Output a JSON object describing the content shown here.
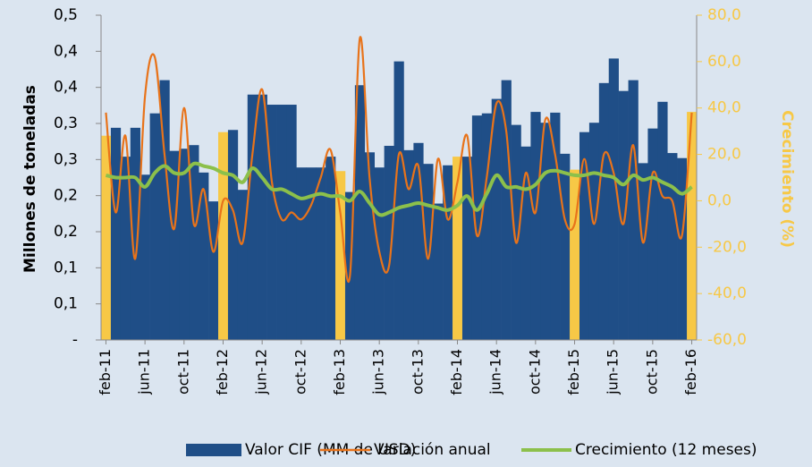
{
  "chart_data": {
    "type": "combo",
    "y_label": "Millones de toneladas",
    "y2_label": "Crecimiento (%)",
    "categories": [
      "feb-11",
      null,
      null,
      null,
      "jun-11",
      null,
      null,
      null,
      "oct-11",
      null,
      null,
      null,
      "feb-12",
      null,
      null,
      null,
      "jun-12",
      null,
      null,
      null,
      "oct-12",
      null,
      null,
      null,
      "feb-13",
      null,
      null,
      null,
      "jun-13",
      null,
      null,
      null,
      "oct-13",
      null,
      null,
      null,
      "feb-14",
      null,
      null,
      null,
      "jun-14",
      null,
      null,
      null,
      "oct-14",
      null,
      null,
      null,
      "feb-15",
      null,
      null,
      null,
      "jun-15",
      null,
      null,
      null,
      "oct-15",
      null,
      null,
      null,
      "feb-16"
    ],
    "series": [
      {
        "name": "Valor CIF (MM de USD)",
        "type": "bar",
        "color": "#1f4e87",
        "highlight_color": "#f7c846",
        "values": [
          0.283,
          0.294,
          0.254,
          0.294,
          0.229,
          0.314,
          0.36,
          0.262,
          0.265,
          0.27,
          0.232,
          0.192,
          0.288,
          0.291,
          0.208,
          0.34,
          0.34,
          0.326,
          0.326,
          0.326,
          0.239,
          0.239,
          0.239,
          0.254,
          0.234,
          0.205,
          0.353,
          0.26,
          0.239,
          0.269,
          0.386,
          0.263,
          0.273,
          0.244,
          0.189,
          0.242,
          0.254,
          0.254,
          0.311,
          0.314,
          0.334,
          0.36,
          0.298,
          0.268,
          0.316,
          0.301,
          0.315,
          0.258,
          0.236,
          0.288,
          0.301,
          0.356,
          0.39,
          0.345,
          0.36,
          0.245,
          0.293,
          0.33,
          0.259,
          0.252,
          0.316
        ]
      },
      {
        "name": "Variación anual",
        "type": "line",
        "axis": "y2",
        "color": "#e8731a",
        "values": [
          38,
          -5,
          28,
          -25,
          45,
          62,
          20,
          -12,
          40,
          -10,
          5,
          -22,
          0,
          -4,
          -18,
          20,
          48,
          8,
          -8,
          -5,
          -8,
          -2,
          10,
          22,
          -5,
          -32,
          70,
          10,
          -22,
          -28,
          20,
          5,
          15,
          -25,
          18,
          -8,
          8,
          28,
          -15,
          10,
          42,
          30,
          -18,
          12,
          -5,
          35,
          20,
          -8,
          -10,
          18,
          -10,
          20,
          12,
          -10,
          24,
          -18,
          12,
          2,
          0,
          -15,
          38
        ]
      },
      {
        "name": "Crecimiento (12 meses)",
        "type": "line",
        "axis": "y2",
        "color": "#8cc04b",
        "values": [
          11,
          10,
          10,
          10,
          6,
          12,
          15,
          12,
          12,
          16,
          15,
          14,
          12,
          11,
          8,
          14,
          10,
          5,
          5,
          3,
          1,
          2,
          3,
          2,
          2,
          0,
          4,
          -1,
          -6,
          -5,
          -3,
          -2,
          -1,
          -2,
          -3,
          -4,
          -2,
          2,
          -4,
          3,
          11,
          6,
          6,
          5,
          7,
          12,
          13,
          12,
          11,
          11,
          12,
          11,
          10,
          7,
          11,
          9,
          10,
          8,
          6,
          3,
          6
        ]
      }
    ],
    "highlight_every": 12,
    "ylim": [
      0,
      0.45
    ],
    "yticks": [
      {
        "value": 0,
        "label": "-"
      },
      {
        "value": 0.05,
        "label": "0,1"
      },
      {
        "value": 0.1,
        "label": "0,1"
      },
      {
        "value": 0.15,
        "label": "0,2"
      },
      {
        "value": 0.2,
        "label": "0,2"
      },
      {
        "value": 0.25,
        "label": "0,3"
      },
      {
        "value": 0.3,
        "label": "0,3"
      },
      {
        "value": 0.35,
        "label": "0,4"
      },
      {
        "value": 0.4,
        "label": "0,4"
      },
      {
        "value": 0.45,
        "label": "0,5"
      }
    ],
    "y2lim": [
      -60,
      80
    ],
    "y2ticks": [
      {
        "value": -60,
        "label": "-60,0"
      },
      {
        "value": -40,
        "label": "-40,0"
      },
      {
        "value": -20,
        "label": "-20,0"
      },
      {
        "value": 0,
        "label": "0,0"
      },
      {
        "value": 20,
        "label": "20,0"
      },
      {
        "value": 40,
        "label": "40,0"
      },
      {
        "value": 60,
        "label": "60,0"
      },
      {
        "value": 80,
        "label": "80,0"
      }
    ],
    "y2_color": "#f7c846",
    "grid": false
  }
}
